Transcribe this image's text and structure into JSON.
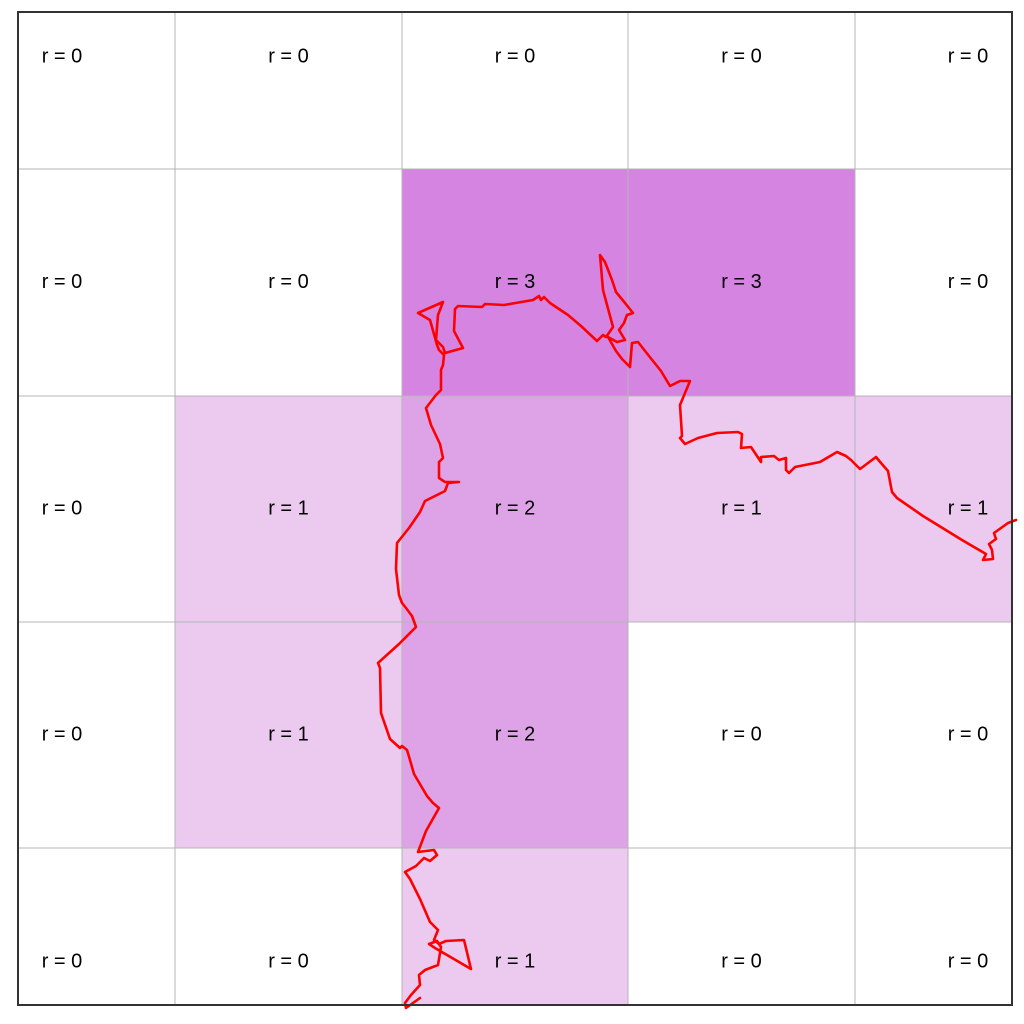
{
  "grid": {
    "rows": 5,
    "cols": 5,
    "label_prefix": "r = ",
    "values": [
      [
        0,
        0,
        0,
        0,
        0
      ],
      [
        0,
        0,
        3,
        3,
        0
      ],
      [
        0,
        1,
        2,
        1,
        1
      ],
      [
        0,
        1,
        2,
        0,
        0
      ],
      [
        0,
        0,
        1,
        0,
        0
      ]
    ],
    "labels": [
      [
        "r = 0",
        "r = 0",
        "r = 0",
        "r = 0",
        "r = 0"
      ],
      [
        "r = 0",
        "r = 0",
        "r = 3",
        "r = 3",
        "r = 0"
      ],
      [
        "r = 0",
        "r = 1",
        "r = 2",
        "r = 1",
        "r = 1"
      ],
      [
        "r = 0",
        "r = 1",
        "r = 2",
        "r = 0",
        "r = 0"
      ],
      [
        "r = 0",
        "r = 0",
        "r = 1",
        "r = 0",
        "r = 0"
      ]
    ]
  },
  "colors": {
    "r0": "#ffffff",
    "r1": "#ecc9ef",
    "r2": "#dea3e6",
    "r3": "#d584e1",
    "grid_line": "#b5b5b5",
    "border": "#333333",
    "path": "#ff0000"
  }
}
